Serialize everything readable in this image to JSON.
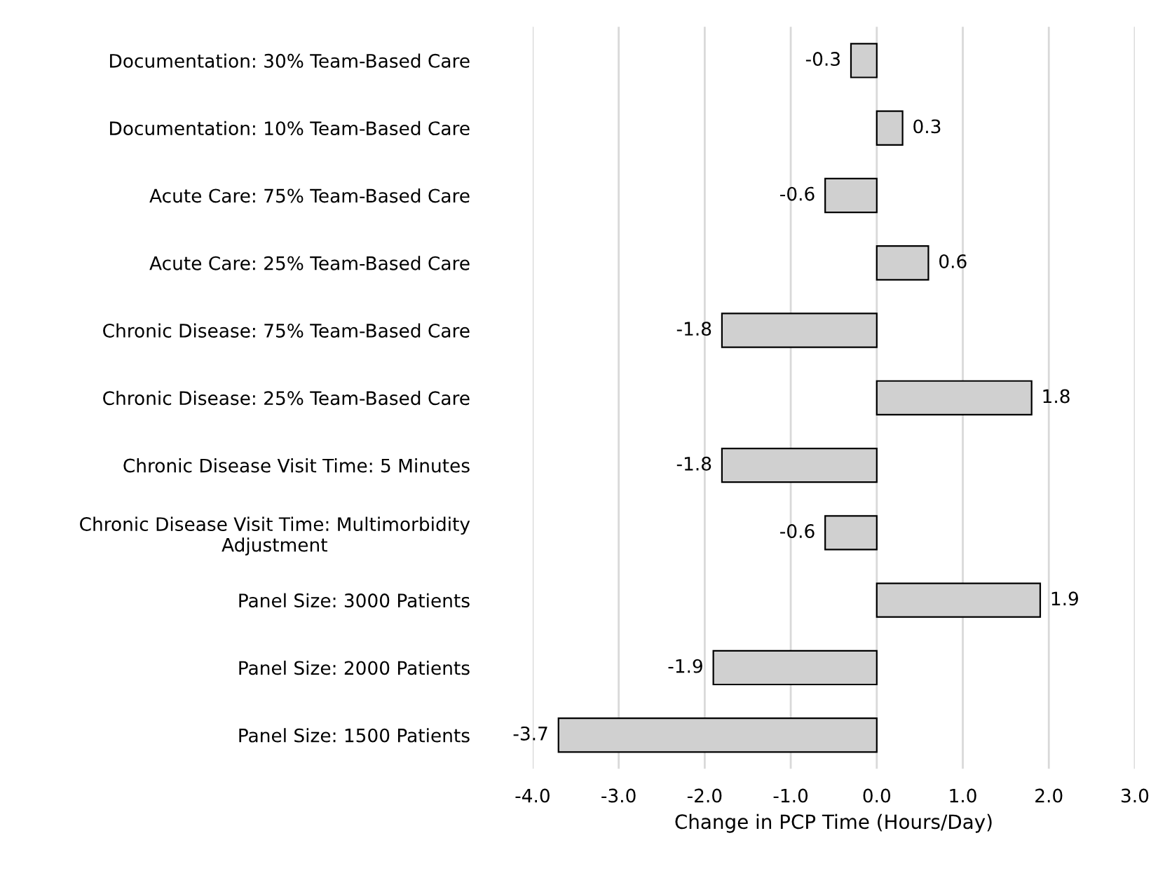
{
  "chart_data": {
    "type": "bar",
    "orientation": "horizontal",
    "xlabel": "Change in PCP Time (Hours/Day)",
    "categories": [
      "Documentation: 30% Team-Based Care",
      "Documentation: 10% Team-Based Care",
      "Acute Care: 75% Team-Based Care",
      "Acute Care: 25% Team-Based Care",
      "Chronic Disease: 75% Team-Based Care",
      "Chronic Disease: 25% Team-Based Care",
      "Chronic Disease Visit Time: 5 Minutes",
      "Chronic Disease Visit Time: Multimorbidity\nAdjustment",
      "Panel Size: 3000 Patients",
      "Panel Size: 2000 Patients",
      "Panel Size: 1500 Patients"
    ],
    "values": [
      -0.3,
      0.3,
      -0.6,
      0.6,
      -1.8,
      1.8,
      -1.8,
      -0.6,
      1.9,
      -1.9,
      -3.7
    ],
    "color": "#d0d0d0",
    "data_labels": true,
    "grid": "x",
    "xlim": [
      -4,
      3
    ],
    "xticks": [
      {
        "value": -4,
        "label": "-4.0"
      },
      {
        "value": -3,
        "label": "-3.0"
      },
      {
        "value": -2,
        "label": "-2.0"
      },
      {
        "value": -1,
        "label": "-1.0"
      },
      {
        "value": 0,
        "label": "0.0"
      },
      {
        "value": 1,
        "label": "1.0"
      },
      {
        "value": 2,
        "label": "2.0"
      },
      {
        "value": 3,
        "label": "3.0"
      }
    ]
  }
}
